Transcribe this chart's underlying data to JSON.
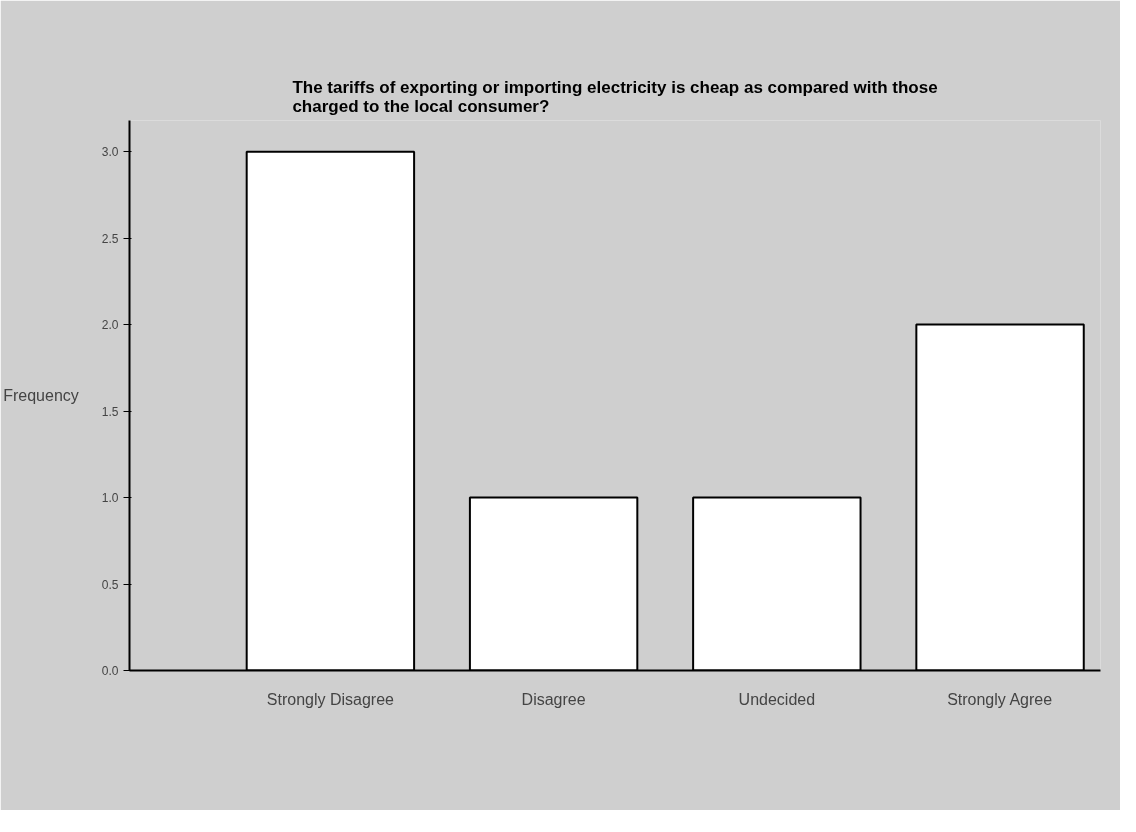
{
  "chart_data": {
    "type": "bar",
    "title": "The tariffs of exporting or importing electricity is cheap as compared with those charged to the local consumer?",
    "ylabel": "Frequency",
    "categories": [
      "Strongly Disagree",
      "Disagree",
      "Undecided",
      "Strongly Agree"
    ],
    "values": [
      3,
      1,
      1,
      2
    ],
    "color": "#ffffff",
    "ylim": [
      0,
      3.18
    ],
    "yticks": [
      {
        "value": 0,
        "label": "0.0"
      },
      {
        "value": 0.5,
        "label": "0.5"
      },
      {
        "value": 1,
        "label": "1.0"
      },
      {
        "value": 1.5,
        "label": "1.5"
      },
      {
        "value": 2,
        "label": "2.0"
      },
      {
        "value": 2.5,
        "label": "2.5"
      },
      {
        "value": 3,
        "label": "3.0"
      }
    ],
    "grid": false
  }
}
